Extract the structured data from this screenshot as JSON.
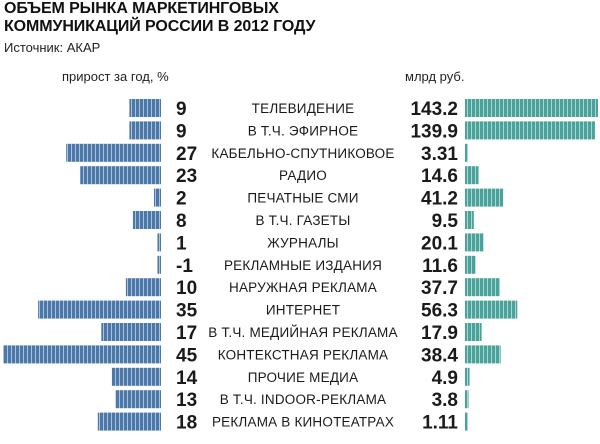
{
  "header": {
    "title_line1": "ОБЪЕМ РЫНКА МАРКЕТИНГОВЫХ",
    "title_line2": "КОММУНИКАЦИЙ РОССИИ В 2012 ГОДУ",
    "source": "Источник: АКАР",
    "left_label": "прирост за год, %",
    "right_label": "млрд руб."
  },
  "colors": {
    "growth_bar": "#4a78a8",
    "volume_bar": "#4aa39a",
    "text": "#1a1a1a"
  },
  "chart_data": {
    "type": "bar",
    "categories": [
      "ТЕЛЕВИДЕНИЕ",
      "В Т.Ч. ЭФИРНОЕ",
      "КАБЕЛЬНО-СПУТНИКОВОЕ",
      "РАДИО",
      "ПЕЧАТНЫЕ СМИ",
      "В Т.Ч. ГАЗЕТЫ",
      "ЖУРНАЛЫ",
      "РЕКЛАМНЫЕ ИЗДАНИЯ",
      "НАРУЖНАЯ РЕКЛАМА",
      "ИНТЕРНЕТ",
      "В Т.Ч. МЕДИЙНАЯ РЕКЛАМА",
      "КОНТЕКСТНАЯ РЕКЛАМА",
      "ПРОЧИЕ МЕДИА",
      "В Т.Ч. INDOOR-РЕКЛАМА",
      "РЕКЛАМА В КИНОТЕАТРАХ"
    ],
    "growth_labels": [
      "9",
      "9",
      "27",
      "23",
      "2",
      "8",
      "1",
      "-1",
      "10",
      "35",
      "17",
      "45",
      "14",
      "13",
      "18"
    ],
    "volume_labels": [
      "143.2",
      "139.9",
      "3.31",
      "14.6",
      "41.2",
      "9.5",
      "20.1",
      "11.6",
      "37.7",
      "56.3",
      "17.9",
      "38.4",
      "4.9",
      "3.8",
      "1.11"
    ],
    "series": [
      {
        "name": "прирост за год, %",
        "values": [
          9,
          9,
          27,
          23,
          2,
          8,
          1,
          -1,
          10,
          35,
          17,
          45,
          14,
          13,
          18
        ]
      },
      {
        "name": "млрд руб.",
        "values": [
          143.2,
          139.9,
          3.31,
          14.6,
          41.2,
          9.5,
          20.1,
          11.6,
          37.7,
          56.3,
          17.9,
          38.4,
          4.9,
          3.8,
          1.11
        ]
      }
    ]
  }
}
